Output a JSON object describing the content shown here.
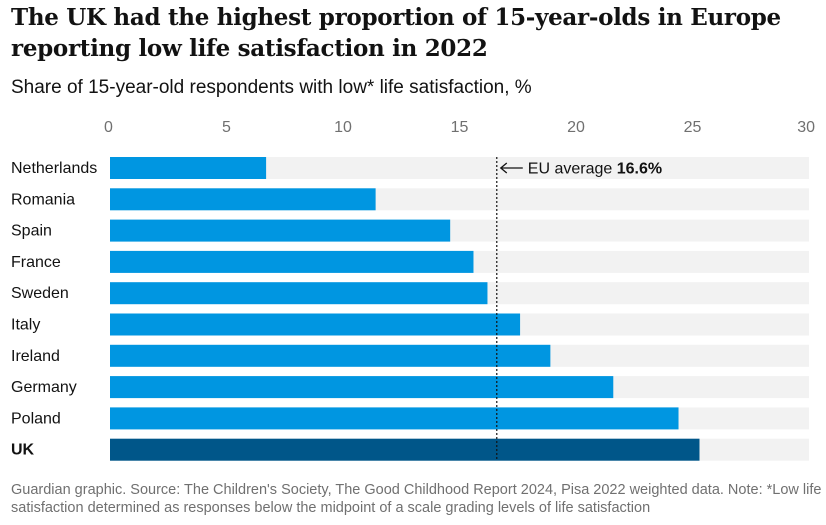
{
  "title": "The UK had the highest proportion of 15-year-olds in Europe reporting low life satisfaction in 2022",
  "subtitle": "Share of 15-year-old respondents with low* life satisfaction, %",
  "footnote": "Guardian graphic. Source: The Children's Society, The Good Childhood Report 2024, Pisa 2022 weighted data. Note: *Low life satisfaction determined as responses below the midpoint of a scale grading levels of life satisfaction",
  "colors": {
    "bar": "#0096e1",
    "highlight": "#005689",
    "track": "#f2f2f2"
  },
  "chart_data": {
    "type": "bar",
    "orientation": "horizontal",
    "categories": [
      "Netherlands",
      "Romania",
      "Spain",
      "France",
      "Sweden",
      "Italy",
      "Ireland",
      "Germany",
      "Poland",
      "UK"
    ],
    "values": [
      6.7,
      11.4,
      14.6,
      15.6,
      16.2,
      17.6,
      18.9,
      21.6,
      24.4,
      25.3
    ],
    "highlight": [
      "UK"
    ],
    "xlim": [
      0,
      30
    ],
    "ticks": [
      0,
      5,
      10,
      15,
      20,
      25,
      30
    ],
    "reference_line": {
      "value": 16.6,
      "label_prefix": "EU average",
      "label_value": "16.6%"
    }
  }
}
